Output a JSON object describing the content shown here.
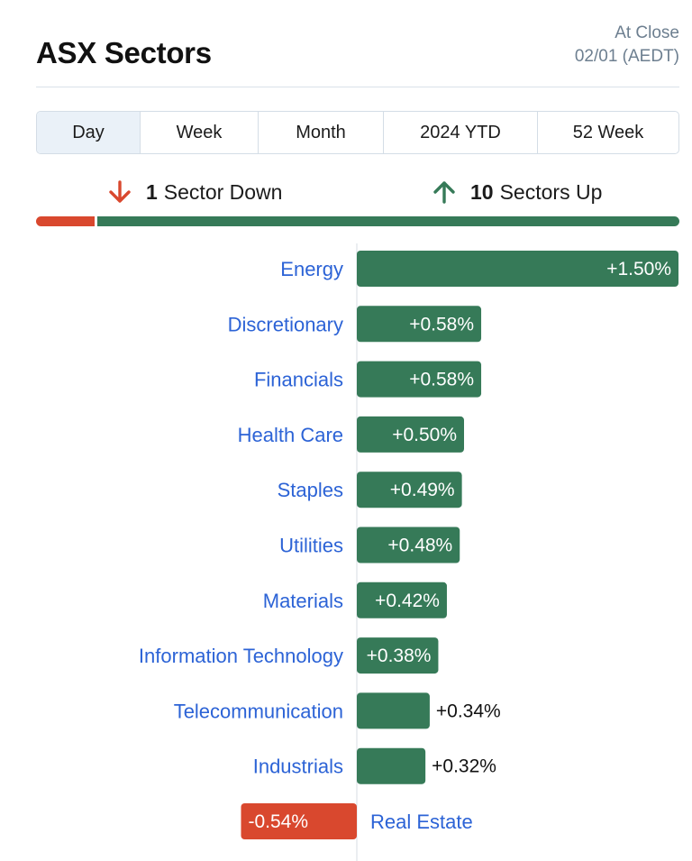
{
  "header": {
    "title": "ASX Sectors",
    "status_line1": "At Close",
    "status_line2": "02/01 (AEDT)"
  },
  "tabs": [
    {
      "label": "Day",
      "active": true
    },
    {
      "label": "Week",
      "active": false
    },
    {
      "label": "Month",
      "active": false
    },
    {
      "label": "2024 YTD",
      "active": false
    },
    {
      "label": "52 Week",
      "active": false
    }
  ],
  "summary": {
    "down_count": "1",
    "down_text": "Sector Down",
    "up_count": "10",
    "up_text": "Sectors Up"
  },
  "colors": {
    "positive": "#367a58",
    "negative": "#d9482e",
    "link": "#2c63d6"
  },
  "chart_data": {
    "type": "bar",
    "orientation": "horizontal",
    "title": "",
    "categories": [
      "Energy",
      "Discretionary",
      "Financials",
      "Health Care",
      "Staples",
      "Utilities",
      "Materials",
      "Information Technology",
      "Telecommunication",
      "Industrials",
      "Real Estate"
    ],
    "values": [
      1.5,
      0.58,
      0.58,
      0.5,
      0.49,
      0.48,
      0.42,
      0.38,
      0.34,
      0.32,
      -0.54
    ],
    "value_labels": [
      "+1.50%",
      "+0.58%",
      "+0.58%",
      "+0.50%",
      "+0.49%",
      "+0.48%",
      "+0.42%",
      "+0.38%",
      "+0.34%",
      "+0.32%",
      "-0.54%"
    ],
    "unit": "%",
    "xlabel": "",
    "ylabel": "",
    "xlim": [
      -0.54,
      1.5
    ],
    "grid": false,
    "legend": "none"
  }
}
